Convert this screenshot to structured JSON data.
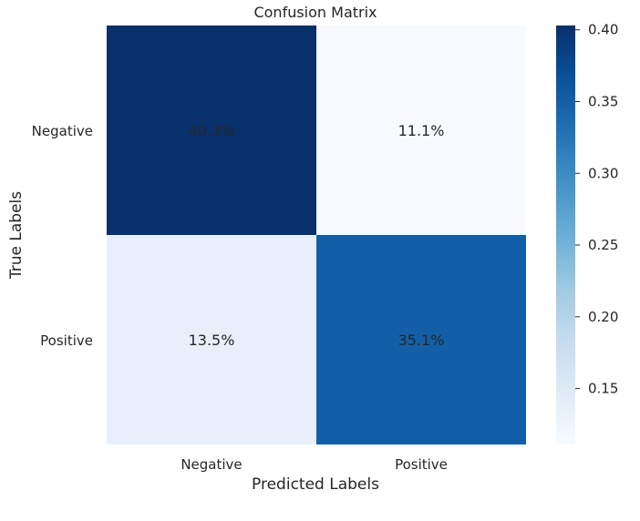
{
  "chart_data": {
    "type": "heatmap",
    "title": "Confusion Matrix",
    "xlabel": "Predicted Labels",
    "ylabel": "True Labels",
    "x_categories": [
      "Negative",
      "Positive"
    ],
    "y_categories": [
      "Negative",
      "Positive"
    ],
    "values": [
      [
        0.403,
        0.111
      ],
      [
        0.135,
        0.351
      ]
    ],
    "cell_labels": [
      [
        "40.3%",
        "11.1%"
      ],
      [
        "13.5%",
        "35.1%"
      ]
    ],
    "colorbar": {
      "min": 0.111,
      "max": 0.403,
      "ticks": [
        0.15,
        0.2,
        0.25,
        0.3,
        0.35,
        0.4
      ],
      "tick_labels": [
        "0.15",
        "0.20",
        "0.25",
        "0.30",
        "0.35",
        "0.40"
      ]
    },
    "colormap": "Blues",
    "grid": false
  }
}
